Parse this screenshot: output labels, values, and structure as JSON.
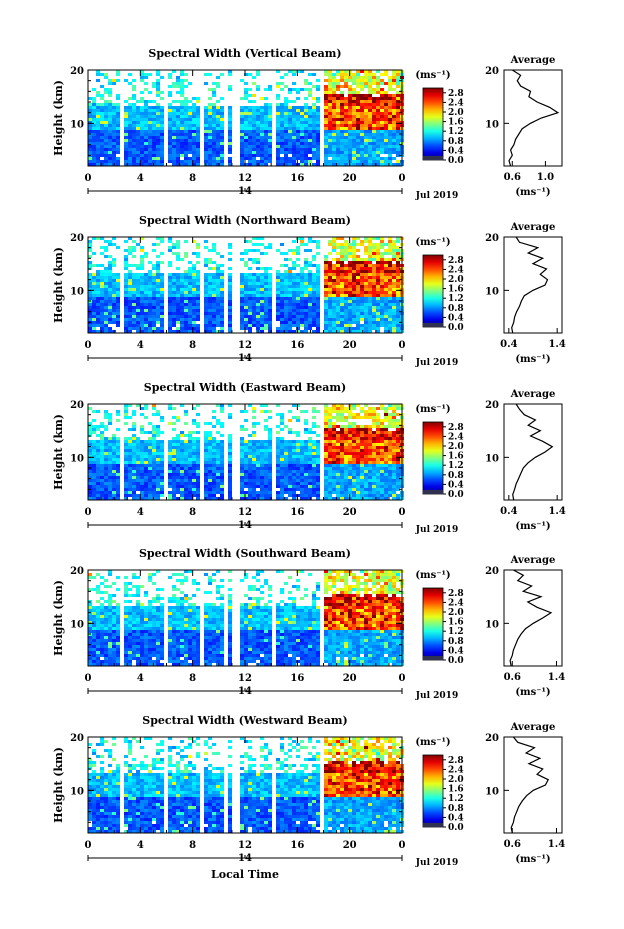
{
  "figure": {
    "x_axis_label": "Local Time",
    "date_label": "Jul 2019",
    "day_label": "14",
    "unit_label": "(ms⁻¹)",
    "average_title": "Average",
    "average_xlabel": "(ms⁻¹)"
  },
  "chart_data": [
    {
      "type": "heatmap",
      "title": "Spectral Width (Vertical Beam)",
      "ylabel": "Height (km)",
      "x_ticks": [
        "0",
        "4",
        "8",
        "12",
        "16",
        "20",
        "0"
      ],
      "y_ticks": [
        "10",
        "20"
      ],
      "xlim": [
        0,
        24
      ],
      "ylim": [
        2,
        20
      ],
      "colorbar": {
        "ticks": [
          "0.0",
          "0.4",
          "0.8",
          "1.2",
          "1.6",
          "2.0",
          "2.4",
          "2.8"
        ],
        "range": [
          0,
          3.0
        ]
      },
      "data_gaps_hours": [
        [
          2.3,
          2.6
        ],
        [
          5.7,
          6.0
        ],
        [
          8.5,
          8.8
        ],
        [
          10.3,
          10.6
        ],
        [
          11.0,
          11.4
        ],
        [
          13.8,
          14.1
        ],
        [
          17.6,
          17.9
        ]
      ],
      "average_profile": {
        "x_ticks": [
          "0.6",
          "1.0"
        ],
        "xlim": [
          0.5,
          1.2
        ],
        "height_km": [
          2,
          3,
          4,
          5,
          6,
          7,
          8,
          9,
          10,
          11,
          12,
          13,
          14,
          15,
          16,
          17,
          18,
          19,
          20
        ],
        "width_ms": [
          0.58,
          0.56,
          0.6,
          0.58,
          0.62,
          0.64,
          0.68,
          0.72,
          0.82,
          0.95,
          1.15,
          1.05,
          0.9,
          0.8,
          0.82,
          0.7,
          0.66,
          0.7,
          0.6
        ]
      }
    },
    {
      "type": "heatmap",
      "title": "Spectral Width (Northward Beam)",
      "ylabel": "Height (km)",
      "x_ticks": [
        "0",
        "4",
        "8",
        "12",
        "16",
        "20",
        "0"
      ],
      "y_ticks": [
        "10",
        "20"
      ],
      "xlim": [
        0,
        24
      ],
      "ylim": [
        2,
        20
      ],
      "colorbar": {
        "ticks": [
          "0.0",
          "0.4",
          "0.8",
          "1.2",
          "1.6",
          "2.0",
          "2.4",
          "2.8"
        ],
        "range": [
          0,
          3.0
        ]
      },
      "data_gaps_hours": [
        [
          2.3,
          2.6
        ],
        [
          5.7,
          6.0
        ],
        [
          8.5,
          8.8
        ],
        [
          10.3,
          10.6
        ],
        [
          11.0,
          11.4
        ],
        [
          13.8,
          14.1
        ],
        [
          17.6,
          17.9
        ]
      ],
      "average_profile": {
        "x_ticks": [
          "0.4",
          "1.4"
        ],
        "xlim": [
          0.3,
          1.5
        ],
        "height_km": [
          2,
          3,
          4,
          5,
          6,
          7,
          8,
          9,
          10,
          11,
          12,
          13,
          14,
          15,
          16,
          17,
          18,
          19,
          20
        ],
        "width_ms": [
          0.48,
          0.46,
          0.5,
          0.52,
          0.56,
          0.62,
          0.66,
          0.72,
          0.9,
          1.15,
          1.2,
          1.05,
          1.18,
          0.9,
          1.1,
          0.8,
          1.0,
          0.62,
          0.55
        ]
      }
    },
    {
      "type": "heatmap",
      "title": "Spectral Width (Eastward Beam)",
      "ylabel": "Height (km)",
      "x_ticks": [
        "0",
        "4",
        "8",
        "12",
        "16",
        "20",
        "0"
      ],
      "y_ticks": [
        "10",
        "20"
      ],
      "xlim": [
        0,
        24
      ],
      "ylim": [
        2,
        20
      ],
      "colorbar": {
        "ticks": [
          "0.0",
          "0.4",
          "0.8",
          "1.2",
          "1.6",
          "2.0",
          "2.4",
          "2.8"
        ],
        "range": [
          0,
          3.0
        ]
      },
      "data_gaps_hours": [
        [
          2.3,
          2.6
        ],
        [
          5.7,
          6.0
        ],
        [
          8.5,
          8.8
        ],
        [
          10.3,
          10.6
        ],
        [
          11.0,
          11.4
        ],
        [
          13.8,
          14.1
        ],
        [
          17.6,
          17.9
        ]
      ],
      "average_profile": {
        "x_ticks": [
          "0.4",
          "1.4"
        ],
        "xlim": [
          0.3,
          1.5
        ],
        "height_km": [
          2,
          3,
          4,
          5,
          6,
          7,
          8,
          9,
          10,
          11,
          12,
          13,
          14,
          15,
          16,
          17,
          18,
          19,
          20
        ],
        "width_ms": [
          0.5,
          0.48,
          0.52,
          0.55,
          0.6,
          0.65,
          0.7,
          0.8,
          0.95,
          1.15,
          1.3,
          1.1,
          0.85,
          1.05,
          0.8,
          0.95,
          0.72,
          0.62,
          0.55
        ]
      }
    },
    {
      "type": "heatmap",
      "title": "Spectral Width (Southward Beam)",
      "ylabel": "Height (km)",
      "x_ticks": [
        "0",
        "4",
        "8",
        "12",
        "16",
        "20",
        "0"
      ],
      "y_ticks": [
        "10",
        "20"
      ],
      "xlim": [
        0,
        24
      ],
      "ylim": [
        2,
        20
      ],
      "colorbar": {
        "ticks": [
          "0.0",
          "0.4",
          "0.8",
          "1.2",
          "1.6",
          "2.0",
          "2.4",
          "2.8"
        ],
        "range": [
          0,
          3.0
        ]
      },
      "data_gaps_hours": [
        [
          2.3,
          2.6
        ],
        [
          5.7,
          6.0
        ],
        [
          8.5,
          8.8
        ],
        [
          10.3,
          10.6
        ],
        [
          11.0,
          11.4
        ],
        [
          13.8,
          14.1
        ],
        [
          17.6,
          17.9
        ]
      ],
      "average_profile": {
        "x_ticks": [
          "0.6",
          "1.4"
        ],
        "xlim": [
          0.45,
          1.5
        ],
        "height_km": [
          2,
          3,
          4,
          5,
          6,
          7,
          8,
          9,
          10,
          11,
          12,
          13,
          14,
          15,
          16,
          17,
          18,
          19,
          20
        ],
        "width_ms": [
          0.58,
          0.56,
          0.6,
          0.62,
          0.66,
          0.7,
          0.76,
          0.84,
          0.98,
          1.15,
          1.3,
          1.05,
          0.88,
          1.12,
          0.8,
          0.95,
          0.7,
          0.8,
          0.62
        ]
      }
    },
    {
      "type": "heatmap",
      "title": "Spectral Width (Westward Beam)",
      "ylabel": "Height (km)",
      "x_ticks": [
        "0",
        "4",
        "8",
        "12",
        "16",
        "20",
        "0"
      ],
      "y_ticks": [
        "10",
        "20"
      ],
      "xlim": [
        0,
        24
      ],
      "ylim": [
        2,
        20
      ],
      "colorbar": {
        "ticks": [
          "0.0",
          "0.4",
          "0.8",
          "1.2",
          "1.6",
          "2.0",
          "2.4",
          "2.8"
        ],
        "range": [
          0,
          3.0
        ]
      },
      "data_gaps_hours": [
        [
          2.3,
          2.6
        ],
        [
          5.7,
          6.0
        ],
        [
          8.5,
          8.8
        ],
        [
          10.3,
          10.6
        ],
        [
          11.0,
          11.4
        ],
        [
          13.8,
          14.1
        ],
        [
          17.6,
          17.9
        ]
      ],
      "average_profile": {
        "x_ticks": [
          "0.6",
          "1.4"
        ],
        "xlim": [
          0.45,
          1.5
        ],
        "height_km": [
          2,
          3,
          4,
          5,
          6,
          7,
          8,
          9,
          10,
          11,
          12,
          13,
          14,
          15,
          16,
          17,
          18,
          19,
          20
        ],
        "width_ms": [
          0.6,
          0.58,
          0.62,
          0.64,
          0.68,
          0.72,
          0.78,
          0.86,
          0.98,
          1.2,
          1.25,
          1.05,
          1.15,
          0.9,
          1.1,
          0.85,
          1.0,
          0.7,
          0.62
        ]
      }
    }
  ]
}
